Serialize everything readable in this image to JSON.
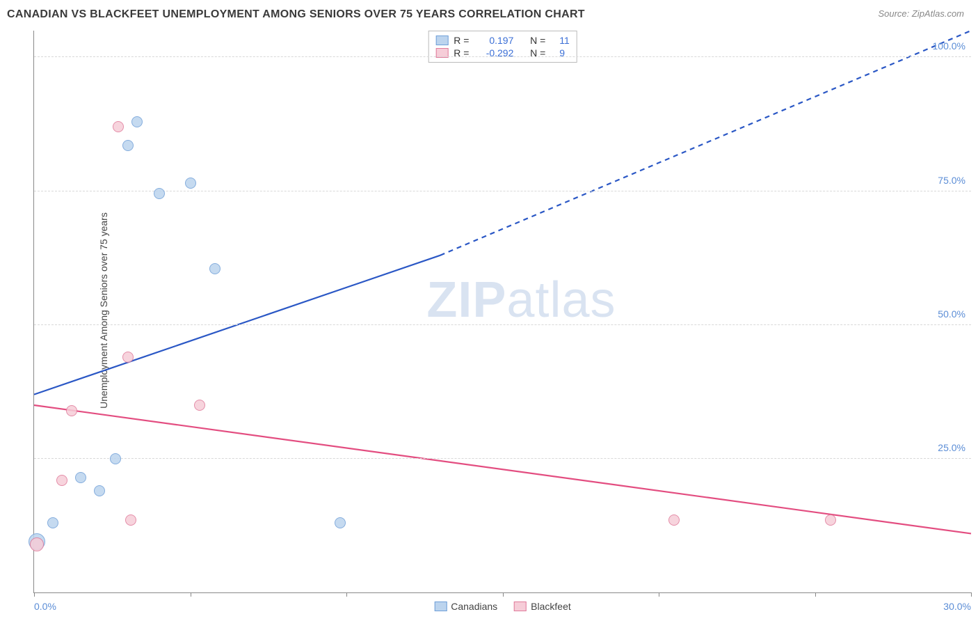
{
  "header": {
    "title": "CANADIAN VS BLACKFEET UNEMPLOYMENT AMONG SENIORS OVER 75 YEARS CORRELATION CHART",
    "source": "Source: ZipAtlas.com"
  },
  "chart": {
    "type": "scatter",
    "ylabel": "Unemployment Among Seniors over 75 years",
    "watermark": "ZIPatlas",
    "background_color": "#ffffff",
    "grid_color": "#d8d8d8",
    "axis_color": "#888888",
    "tick_label_color": "#5b8dd6",
    "xlim": [
      0,
      30
    ],
    "ylim": [
      0,
      105
    ],
    "xticks": [
      0,
      5,
      10,
      15,
      20,
      25,
      30
    ],
    "xtick_labels": [
      "0.0%",
      "",
      "",
      "",
      "",
      "",
      "30.0%"
    ],
    "yticks": [
      25,
      50,
      75,
      100
    ],
    "ytick_labels": [
      "25.0%",
      "50.0%",
      "75.0%",
      "100.0%"
    ],
    "series": [
      {
        "name": "Canadians",
        "fill": "#bcd4ee",
        "stroke": "#6f9fd8",
        "points": [
          {
            "x": 0.1,
            "y": 9.5,
            "r": 12
          },
          {
            "x": 0.6,
            "y": 13.0,
            "r": 8
          },
          {
            "x": 1.5,
            "y": 21.5,
            "r": 8
          },
          {
            "x": 2.1,
            "y": 19.0,
            "r": 8
          },
          {
            "x": 2.6,
            "y": 25.0,
            "r": 8
          },
          {
            "x": 3.3,
            "y": 88.0,
            "r": 8
          },
          {
            "x": 3.0,
            "y": 83.5,
            "r": 8
          },
          {
            "x": 4.0,
            "y": 74.5,
            "r": 8
          },
          {
            "x": 5.0,
            "y": 76.5,
            "r": 8
          },
          {
            "x": 5.8,
            "y": 60.5,
            "r": 8
          },
          {
            "x": 9.8,
            "y": 13.0,
            "r": 8
          }
        ]
      },
      {
        "name": "Blackfeet",
        "fill": "#f6cdd8",
        "stroke": "#e07a9a",
        "points": [
          {
            "x": 0.1,
            "y": 9.0,
            "r": 10
          },
          {
            "x": 0.9,
            "y": 21.0,
            "r": 8
          },
          {
            "x": 1.2,
            "y": 34.0,
            "r": 8
          },
          {
            "x": 2.7,
            "y": 87.0,
            "r": 8
          },
          {
            "x": 3.0,
            "y": 44.0,
            "r": 8
          },
          {
            "x": 3.1,
            "y": 13.5,
            "r": 8
          },
          {
            "x": 5.3,
            "y": 35.0,
            "r": 8
          },
          {
            "x": 20.5,
            "y": 13.5,
            "r": 8
          },
          {
            "x": 25.5,
            "y": 13.5,
            "r": 8
          }
        ]
      }
    ],
    "trend_lines": [
      {
        "name": "canadian-trend",
        "color": "#2a57c5",
        "width": 2.2,
        "solid": {
          "x1": 0,
          "y1": 37,
          "x2": 13,
          "y2": 63
        },
        "dashed": {
          "x1": 13,
          "y1": 63,
          "x2": 30,
          "y2": 105
        }
      },
      {
        "name": "blackfeet-trend",
        "color": "#e34d80",
        "width": 2.2,
        "solid": {
          "x1": 0,
          "y1": 35,
          "x2": 30,
          "y2": 11
        }
      }
    ],
    "legend_top": [
      {
        "swatch_fill": "#bcd4ee",
        "swatch_stroke": "#6f9fd8",
        "r": "0.197",
        "n": "11"
      },
      {
        "swatch_fill": "#f6cdd8",
        "swatch_stroke": "#e07a9a",
        "r": "-0.292",
        "n": "9"
      }
    ],
    "legend_top_labels": {
      "r": "R =",
      "n": "N ="
    },
    "legend_bottom": [
      {
        "swatch_fill": "#bcd4ee",
        "swatch_stroke": "#6f9fd8",
        "label": "Canadians"
      },
      {
        "swatch_fill": "#f6cdd8",
        "swatch_stroke": "#e07a9a",
        "label": "Blackfeet"
      }
    ]
  }
}
